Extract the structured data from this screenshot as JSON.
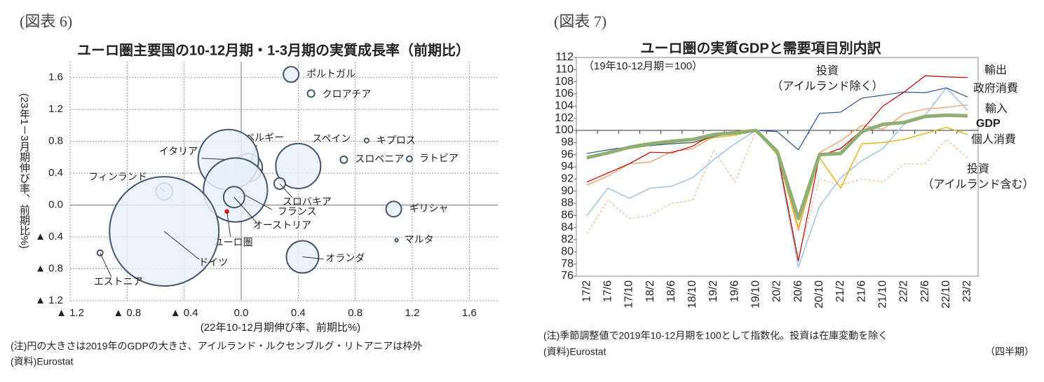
{
  "chart_data": [
    {
      "type": "scatter",
      "label": "(図表 6)",
      "title": "ユーロ圏主要国の10-12月期・1-3月期の実質成長率（前期比）",
      "xlabel": "(22年10-12月期伸び率、前期比%)",
      "ylabel": "(23年1－3月期伸び率、前期比%)",
      "note": "(注)円の大きさは2019年のGDPの大きさ、アイルランド・ルクセンブルグ・リトアニアは枠外",
      "source": "(資料)Eurostat",
      "xlim": [
        -1.2,
        1.8
      ],
      "ylim": [
        -1.2,
        1.8
      ],
      "xticks": [
        {
          "value": -1.2,
          "label": "▲ 1.2"
        },
        {
          "value": -0.8,
          "label": "▲ 0.8"
        },
        {
          "value": -0.4,
          "label": "▲ 0.4"
        },
        {
          "value": 0,
          "label": "0.0"
        },
        0.4,
        0.8,
        1.2,
        1.6
      ],
      "yticks": [
        {
          "value": -1.2,
          "label": "▲ 1.2"
        },
        {
          "value": -0.8,
          "label": "▲ 0.8"
        },
        {
          "value": -0.4,
          "label": "▲ 0.4"
        },
        {
          "value": 0,
          "label": "0.0"
        },
        0.4,
        0.8,
        1.2,
        1.6
      ],
      "grid": true,
      "edge_color": "#44546a",
      "labels": [
        "ポルトガル",
        "クロアチア",
        "キプロス",
        "スロベニア",
        "ラトビア",
        "スペイン",
        "ベルギー",
        "イタリア",
        "フィンランド",
        "スロバキア",
        "フランス",
        "オーストリア",
        "ユーロ圏",
        "ギリシャ",
        "ドイツ",
        "マルタ",
        "エストニア",
        "オランダ"
      ],
      "x": [
        0.35,
        0.49,
        0.88,
        0.72,
        1.18,
        0.4,
        0.05,
        -0.09,
        -0.54,
        0.27,
        -0.04,
        -0.05,
        -0.1,
        1.07,
        -0.54,
        1.09,
        -0.99,
        0.43
      ],
      "y": [
        1.64,
        1.4,
        0.81,
        0.57,
        0.58,
        0.49,
        0.47,
        0.57,
        0.17,
        0.27,
        0.19,
        0.1,
        -0.08,
        -0.05,
        -0.33,
        -0.44,
        -0.6,
        -0.65
      ],
      "sizes": [
        0.076,
        0.016,
        0.006,
        0.016,
        0.01,
        0.64,
        0.25,
        1.16,
        0.09,
        0.04,
        1.3,
        0.14,
        0.0025,
        0.076,
        3.8,
        0.0025,
        0.01,
        0.33
      ],
      "colors": [
        "#e8f0fa",
        "#ffffff",
        "#ffffff",
        "#ffffff",
        "#ffffff",
        "#e8f0fa",
        "#e8f0fa",
        "#e8f0fa",
        "#e8f0fa",
        "#ffffff",
        "#e8f0fa",
        "#e8f0fa",
        "#ff0000",
        "#e8f0fa",
        "#e8f0fa",
        "#ffffff",
        "#ffffff",
        "#e8f0fa"
      ]
    },
    {
      "type": "line",
      "label": "(図表 7)",
      "title": "ユーロ圏の実質GDPと需要項目別内訳",
      "subtitle": "（19年10-12月期＝100）",
      "note": "(注)季節調整値で2019年10-12月期を100として指数化。投資は在庫変動を除く",
      "source": "(資料)Eurostat",
      "xlabel": "（四半期）",
      "categories": [
        "17/2",
        "17/6",
        "17/10",
        "18/2",
        "18/6",
        "18/10",
        "19/2",
        "19/6",
        "19/10",
        "20/2",
        "20/6",
        "20/10",
        "21/2",
        "21/6",
        "21/10",
        "22/2",
        "22/6",
        "22/10",
        "23/2"
      ],
      "ylim": [
        76,
        112
      ],
      "yticks": [
        76,
        78,
        80,
        82,
        84,
        86,
        88,
        90,
        92,
        94,
        96,
        98,
        100,
        102,
        104,
        106,
        108,
        110,
        112
      ],
      "hline": 100,
      "series": [
        {
          "name": "投資（アイルランド含む）",
          "color": "#f4b183",
          "style": "dotted",
          "line_width": 1.2,
          "values": [
            83,
            88.5,
            85.5,
            86,
            88,
            88.5,
            96.8,
            91.5,
            100,
            97,
            79,
            92,
            91,
            92,
            91.5,
            94.5,
            94.5,
            98.5,
            95.5
          ]
        },
        {
          "name": "輸入",
          "color": "#9dc3e6",
          "line_width": 1.5,
          "values": [
            86,
            90.5,
            88.8,
            90.5,
            90.8,
            92.2,
            95.2,
            97.8,
            100,
            96,
            77.5,
            87.5,
            92.2,
            95,
            97,
            101,
            102.5,
            107,
            103.3
          ]
        },
        {
          "name": "投資（アイルランド除く）",
          "color": "#f0a878",
          "line_width": 1.5,
          "values": [
            91,
            92.5,
            94.5,
            94.8,
            96.5,
            97,
            99,
            99.8,
            100,
            96.5,
            83.5,
            96.3,
            98.3,
            100.8,
            100.2,
            102.7,
            103.5,
            103.8,
            104.2
          ]
        },
        {
          "name": "個人消費",
          "color": "#e6b422",
          "line_width": 1.5,
          "values": [
            95.3,
            96.2,
            97,
            97.5,
            97.8,
            98,
            98.8,
            99.2,
            100,
            96,
            84,
            95.5,
            90.5,
            97.8,
            98,
            98.5,
            99.5,
            100.5,
            99.3
          ]
        },
        {
          "name": "政府消費",
          "color": "#2f5597",
          "line_width": 1.2,
          "values": [
            96.2,
            96.8,
            97.3,
            97.5,
            97.8,
            98,
            99,
            99.5,
            100,
            99.8,
            96.8,
            102.8,
            103,
            105.3,
            105.8,
            106.3,
            106.2,
            107,
            105.5
          ]
        },
        {
          "name": "輸出",
          "color": "#c00000",
          "line_width": 1.2,
          "values": [
            91.5,
            93,
            94.5,
            96.4,
            96.3,
            97.4,
            99.5,
            99.8,
            100,
            96.5,
            78.5,
            95.8,
            97,
            100,
            104,
            106.3,
            109,
            108.8,
            108.7
          ]
        },
        {
          "name": "GDP",
          "color": "#8fae74",
          "line_width": 5,
          "values": [
            95.5,
            96.3,
            97.2,
            97.8,
            98.2,
            98.5,
            99.3,
            99.6,
            100,
            96.5,
            85.5,
            96,
            96.2,
            99.8,
            101,
            101.3,
            102.3,
            102.5,
            102.4
          ]
        }
      ]
    }
  ]
}
